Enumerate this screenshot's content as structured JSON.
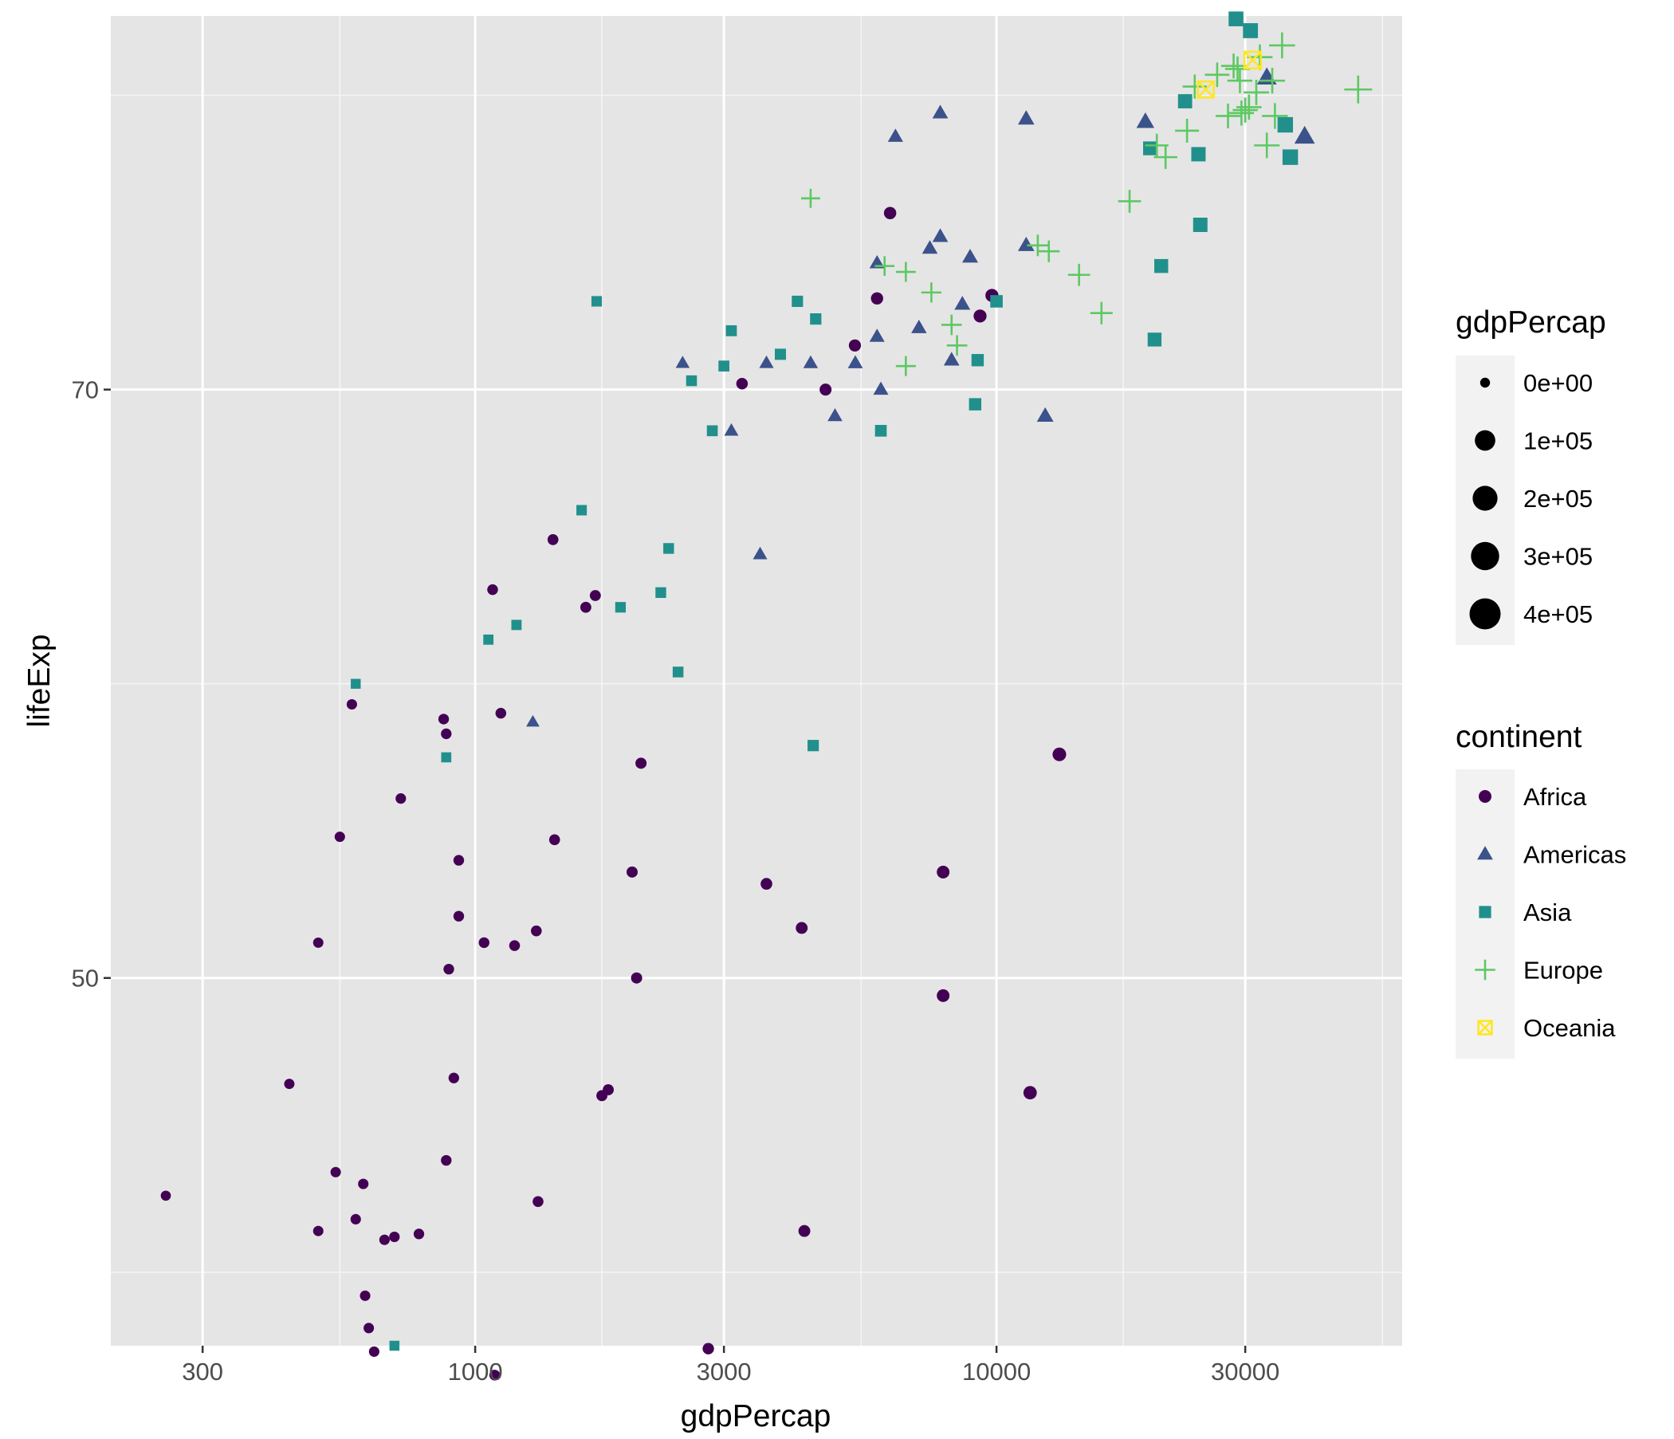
{
  "chart_data": {
    "type": "scatter",
    "xlabel": "gdpPercap",
    "ylabel": "lifeExp",
    "x_scale": "log10",
    "xlim": [
      200,
      60000
    ],
    "ylim": [
      37.5,
      82.7
    ],
    "x_ticks": [
      {
        "value": 300,
        "label": "300"
      },
      {
        "value": 1000,
        "label": "1000"
      },
      {
        "value": 3000,
        "label": "3000"
      },
      {
        "value": 10000,
        "label": "10000"
      },
      {
        "value": 30000,
        "label": "30000"
      }
    ],
    "x_minor_ticks": [
      550,
      1750,
      5500,
      17500,
      55000
    ],
    "y_ticks": [
      {
        "value": 50,
        "label": "50"
      },
      {
        "value": 70,
        "label": "70"
      }
    ],
    "y_minor_ticks": [
      40,
      60,
      80
    ],
    "grid": true,
    "background": "#e5e5e5",
    "legend_position": "right",
    "size_legend": {
      "title": "gdpPercap",
      "entries": [
        {
          "label": "0e+00",
          "value": 0
        },
        {
          "label": "1e+05",
          "value": 100000
        },
        {
          "label": "2e+05",
          "value": 200000
        },
        {
          "label": "3e+05",
          "value": 300000
        },
        {
          "label": "4e+05",
          "value": 400000
        }
      ]
    },
    "color_legend": {
      "title": "continent",
      "entries": [
        {
          "label": "Africa",
          "color": "#440154",
          "shape": "circle"
        },
        {
          "label": "Americas",
          "color": "#3B528B",
          "shape": "triangle"
        },
        {
          "label": "Asia",
          "color": "#21908C",
          "shape": "square"
        },
        {
          "label": "Europe",
          "color": "#5DC863",
          "shape": "plus"
        },
        {
          "label": "Oceania",
          "color": "#FDE725",
          "shape": "square-cross"
        }
      ]
    },
    "series": [
      {
        "name": "Africa",
        "points": [
          [
            255,
            42.6
          ],
          [
            440,
            46.4
          ],
          [
            500,
            51.2
          ],
          [
            500,
            41.4
          ],
          [
            540,
            43.4
          ],
          [
            550,
            54.8
          ],
          [
            580,
            59.3
          ],
          [
            590,
            41.8
          ],
          [
            610,
            43.0
          ],
          [
            615,
            39.2
          ],
          [
            625,
            38.1
          ],
          [
            640,
            37.3
          ],
          [
            670,
            41.1
          ],
          [
            700,
            41.2
          ],
          [
            720,
            56.1
          ],
          [
            780,
            41.3
          ],
          [
            870,
            58.8
          ],
          [
            880,
            58.3
          ],
          [
            880,
            43.8
          ],
          [
            890,
            50.3
          ],
          [
            910,
            46.6
          ],
          [
            930,
            54.0
          ],
          [
            930,
            52.1
          ],
          [
            1040,
            51.2
          ],
          [
            1080,
            63.2
          ],
          [
            1090,
            36.5
          ],
          [
            1120,
            59.0
          ],
          [
            1190,
            51.1
          ],
          [
            1310,
            51.6
          ],
          [
            1320,
            42.4
          ],
          [
            1420,
            54.7
          ],
          [
            1410,
            64.9
          ],
          [
            1630,
            62.6
          ],
          [
            1700,
            63.0
          ],
          [
            1750,
            46.0
          ],
          [
            1800,
            46.2
          ],
          [
            2000,
            53.6
          ],
          [
            2040,
            50.0
          ],
          [
            2080,
            57.3
          ],
          [
            2800,
            37.4
          ],
          [
            3250,
            70.2
          ],
          [
            3620,
            53.2
          ],
          [
            4230,
            51.7
          ],
          [
            4280,
            41.4
          ],
          [
            4700,
            70.0
          ],
          [
            5350,
            71.5
          ],
          [
            5900,
            73.1
          ],
          [
            6250,
            76.0
          ],
          [
            7900,
            49.4
          ],
          [
            7900,
            53.6
          ],
          [
            9300,
            72.5
          ],
          [
            9800,
            73.2
          ],
          [
            11600,
            46.1
          ],
          [
            13200,
            57.6
          ]
        ]
      },
      {
        "name": "Americas",
        "points": [
          [
            1290,
            58.7
          ],
          [
            2500,
            70.9
          ],
          [
            3100,
            68.6
          ],
          [
            3520,
            64.4
          ],
          [
            3620,
            70.9
          ],
          [
            4400,
            70.9
          ],
          [
            4900,
            69.1
          ],
          [
            5360,
            70.9
          ],
          [
            5900,
            71.8
          ],
          [
            5900,
            74.3
          ],
          [
            6000,
            70.0
          ],
          [
            6400,
            78.6
          ],
          [
            7100,
            72.1
          ],
          [
            7450,
            74.8
          ],
          [
            7800,
            75.2
          ],
          [
            7800,
            79.4
          ],
          [
            8200,
            71.0
          ],
          [
            8600,
            72.9
          ],
          [
            8900,
            74.5
          ],
          [
            11400,
            74.9
          ],
          [
            11400,
            79.2
          ],
          [
            12400,
            69.1
          ],
          [
            19300,
            79.1
          ],
          [
            33000,
            80.6
          ],
          [
            39000,
            78.6
          ]
        ]
      },
      {
        "name": "Asia",
        "points": [
          [
            590,
            60.0
          ],
          [
            880,
            57.5
          ],
          [
            700,
            37.5
          ],
          [
            1060,
            61.5
          ],
          [
            1200,
            62.0
          ],
          [
            1600,
            65.9
          ],
          [
            1710,
            73.0
          ],
          [
            1900,
            62.6
          ],
          [
            2270,
            63.1
          ],
          [
            2350,
            64.6
          ],
          [
            2450,
            60.4
          ],
          [
            2600,
            70.3
          ],
          [
            2850,
            68.6
          ],
          [
            3000,
            70.8
          ],
          [
            3100,
            72.0
          ],
          [
            3850,
            71.2
          ],
          [
            4150,
            73.0
          ],
          [
            4450,
            57.9
          ],
          [
            4500,
            72.4
          ],
          [
            6000,
            68.6
          ],
          [
            9100,
            69.5
          ],
          [
            9200,
            71.0
          ],
          [
            10000,
            73.0
          ],
          [
            20100,
            71.7
          ],
          [
            20700,
            74.2
          ],
          [
            19700,
            78.2
          ],
          [
            23000,
            79.8
          ],
          [
            24400,
            78.0
          ],
          [
            24600,
            75.6
          ],
          [
            28800,
            82.6
          ],
          [
            30700,
            82.2
          ],
          [
            35800,
            79.0
          ],
          [
            36600,
            77.9
          ]
        ]
      },
      {
        "name": "Europe",
        "points": [
          [
            4400,
            76.5
          ],
          [
            6100,
            74.2
          ],
          [
            6700,
            74.0
          ],
          [
            6700,
            70.8
          ],
          [
            7500,
            73.3
          ],
          [
            8200,
            72.2
          ],
          [
            8400,
            71.5
          ],
          [
            12000,
            74.9
          ],
          [
            12600,
            74.7
          ],
          [
            14400,
            73.9
          ],
          [
            15900,
            72.6
          ],
          [
            18000,
            76.4
          ],
          [
            20300,
            78.3
          ],
          [
            21100,
            77.9
          ],
          [
            23200,
            78.8
          ],
          [
            24000,
            80.3
          ],
          [
            26500,
            80.7
          ],
          [
            27800,
            79.3
          ],
          [
            28500,
            81.0
          ],
          [
            29000,
            80.9
          ],
          [
            29300,
            80.5
          ],
          [
            29500,
            79.4
          ],
          [
            30000,
            79.5
          ],
          [
            30500,
            79.6
          ],
          [
            31500,
            80.1
          ],
          [
            32000,
            81.3
          ],
          [
            33000,
            78.3
          ],
          [
            33800,
            80.5
          ],
          [
            34200,
            79.3
          ],
          [
            35300,
            81.7
          ],
          [
            49400,
            80.2
          ]
        ]
      },
      {
        "name": "Oceania",
        "points": [
          [
            25200,
            80.2
          ],
          [
            31000,
            81.2
          ]
        ]
      }
    ]
  }
}
